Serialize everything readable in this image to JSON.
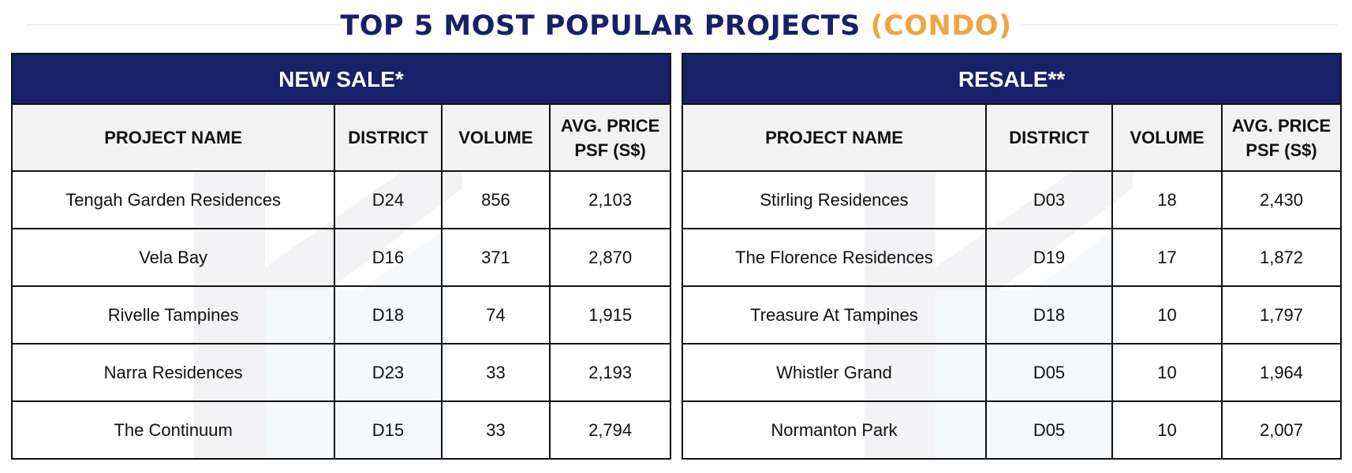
{
  "title": {
    "main": "TOP 5 MOST POPULAR PROJECTS",
    "accent": "(CONDO)"
  },
  "colors": {
    "navy": "#16216a",
    "accent": "#f0a444",
    "header_bg": "#f2f2f2"
  },
  "new_sale": {
    "heading": "NEW SALE*",
    "columns": [
      "PROJECT NAME",
      "DISTRICT",
      "VOLUME",
      "AVG. PRICE PSF (S$)"
    ],
    "rows": [
      [
        "Tengah Garden Residences",
        "D24",
        "856",
        "2,103"
      ],
      [
        "Vela Bay",
        "D16",
        "371",
        "2,870"
      ],
      [
        "Rivelle Tampines",
        "D18",
        "74",
        "1,915"
      ],
      [
        "Narra Residences",
        "D23",
        "33",
        "2,193"
      ],
      [
        "The Continuum",
        "D15",
        "33",
        "2,794"
      ]
    ]
  },
  "resale": {
    "heading": "RESALE**",
    "columns": [
      "PROJECT NAME",
      "DISTRICT",
      "VOLUME",
      "AVG. PRICE PSF (S$)"
    ],
    "rows": [
      [
        "Stirling Residences",
        "D03",
        "18",
        "2,430"
      ],
      [
        "The Florence Residences",
        "D19",
        "17",
        "1,872"
      ],
      [
        "Treasure At Tampines",
        "D18",
        "10",
        "1,797"
      ],
      [
        "Whistler Grand",
        "D05",
        "10",
        "1,964"
      ],
      [
        "Normanton Park",
        "D05",
        "10",
        "2,007"
      ]
    ]
  }
}
